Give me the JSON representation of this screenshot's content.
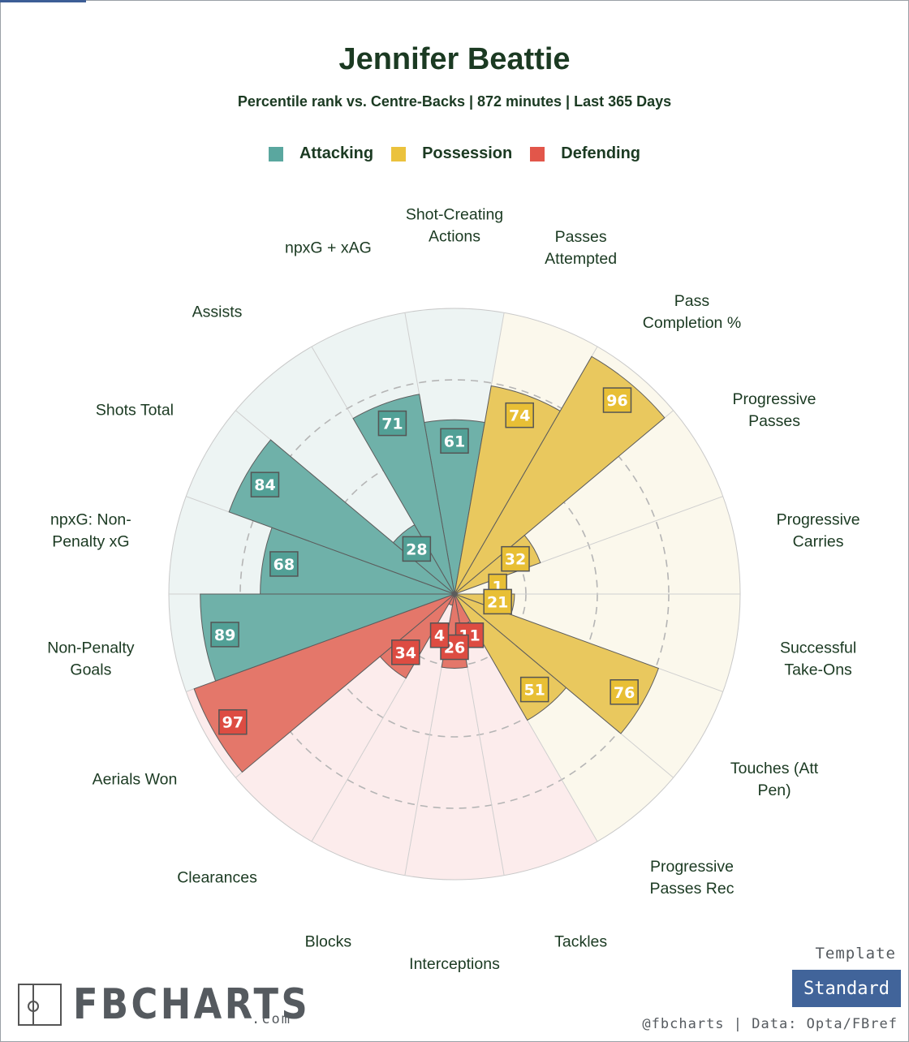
{
  "header": {
    "title": "Jennifer Beattie",
    "subtitle": "Percentile rank vs. Centre-Backs | 872 minutes | Last 365 Days"
  },
  "legend": [
    {
      "label": "Attacking",
      "color": "#5aa79f"
    },
    {
      "label": "Possession",
      "color": "#ebc23d"
    },
    {
      "label": "Defending",
      "color": "#e2564a"
    }
  ],
  "chart_data": {
    "type": "polar-bar",
    "title": "Jennifer Beattie",
    "subtitle": "Percentile rank vs. Centre-Backs | 872 minutes | Last 365 Days",
    "rlim": [
      0,
      100
    ],
    "grid": true,
    "legend_position": "top",
    "colors": {
      "Attacking": {
        "bar": "#6fb1a9",
        "bg": "#edf4f3",
        "box": "#52a096"
      },
      "Possession": {
        "bar": "#e9c85e",
        "bg": "#fbf8ec",
        "box": "#e8bf35"
      },
      "Defending": {
        "bar": "#e4776a",
        "bg": "#fcecec",
        "box": "#dd4c42"
      }
    },
    "categories": [
      {
        "label": [
          "Shot-Creating",
          "Actions"
        ],
        "value": 61,
        "group": "Attacking"
      },
      {
        "label": [
          "Passes",
          "Attempted"
        ],
        "value": 74,
        "group": "Possession"
      },
      {
        "label": [
          "Pass",
          "Completion %"
        ],
        "value": 96,
        "group": "Possession"
      },
      {
        "label": [
          "Progressive",
          "Passes"
        ],
        "value": 32,
        "group": "Possession"
      },
      {
        "label": [
          "Progressive",
          "Carries"
        ],
        "value": 1,
        "group": "Possession"
      },
      {
        "label": [
          "Successful",
          "Take-Ons"
        ],
        "value": 21,
        "group": "Possession"
      },
      {
        "label": [
          "Touches (Att",
          "Pen)"
        ],
        "value": 76,
        "group": "Possession"
      },
      {
        "label": [
          "Progressive",
          "Passes Rec"
        ],
        "value": 51,
        "group": "Possession"
      },
      {
        "label": [
          "Tackles"
        ],
        "value": 11,
        "group": "Defending"
      },
      {
        "label": [
          "Interceptions"
        ],
        "value": 26,
        "group": "Defending"
      },
      {
        "label": [
          "Blocks"
        ],
        "value": 4,
        "group": "Defending"
      },
      {
        "label": [
          "Clearances"
        ],
        "value": 34,
        "group": "Defending"
      },
      {
        "label": [
          "Aerials Won"
        ],
        "value": 97,
        "group": "Defending"
      },
      {
        "label": [
          "Non-Penalty",
          "Goals"
        ],
        "value": 89,
        "group": "Attacking"
      },
      {
        "label": [
          "npxG: Non-",
          "Penalty xG"
        ],
        "value": 68,
        "group": "Attacking"
      },
      {
        "label": [
          "Shots Total"
        ],
        "value": 84,
        "group": "Attacking"
      },
      {
        "label": [
          "Assists"
        ],
        "value": 28,
        "group": "Attacking"
      },
      {
        "label": [
          "npxG + xAG"
        ],
        "value": 71,
        "group": "Attacking"
      }
    ]
  },
  "branding": {
    "logo_text": "FBCHARTS",
    "logo_suffix": ".com",
    "template_label": "Template",
    "template_button": "Standard",
    "credit": "@fbcharts | Data: Opta/FBref"
  }
}
